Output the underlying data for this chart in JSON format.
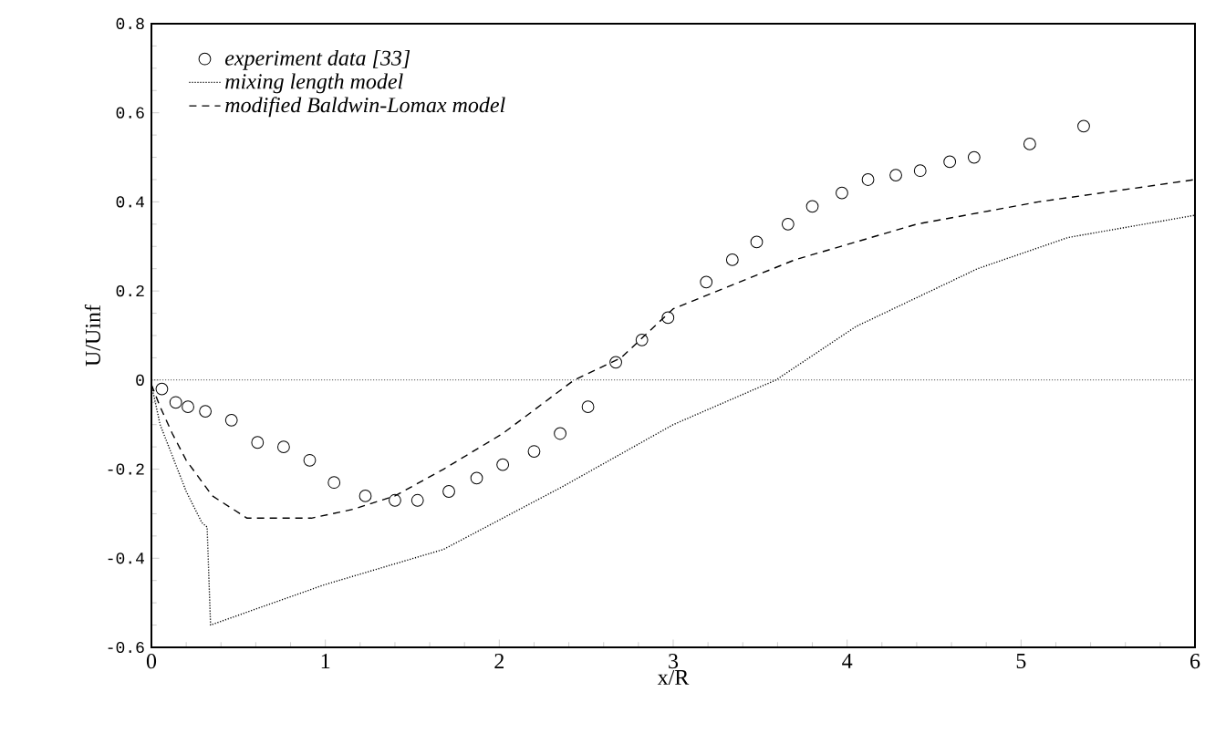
{
  "chart_data": {
    "type": "line",
    "xlabel": "x/R",
    "ylabel": "U/Uinf",
    "xlim": [
      0,
      6
    ],
    "ylim": [
      -0.6,
      0.8
    ],
    "xticks": [
      0,
      1,
      2,
      3,
      4,
      5,
      6
    ],
    "yticks": [
      -0.6,
      -0.4,
      -0.2,
      0,
      0.2,
      0.4,
      0.6,
      0.8
    ],
    "legend": "top left",
    "grid": false,
    "ref_lines": [
      {
        "axis": "y",
        "value": 0,
        "color": "#000000",
        "line_style": "dotted"
      }
    ],
    "series": [
      {
        "name": "experiment data [33]",
        "type": "scatter",
        "marker": "circle",
        "color": "#000000",
        "x": [
          0.06,
          0.14,
          0.21,
          0.31,
          0.46,
          0.61,
          0.76,
          0.91,
          1.05,
          1.23,
          1.4,
          1.53,
          1.71,
          1.87,
          2.02,
          2.2,
          2.35,
          2.51,
          2.67,
          2.82,
          2.97,
          3.19,
          3.34,
          3.48,
          3.66,
          3.8,
          3.97,
          4.12,
          4.28,
          4.42,
          4.59,
          4.73,
          5.05,
          5.36
        ],
        "values": [
          -0.02,
          -0.05,
          -0.06,
          -0.07,
          -0.09,
          -0.14,
          -0.15,
          -0.18,
          -0.23,
          -0.26,
          -0.27,
          -0.27,
          -0.25,
          -0.22,
          -0.19,
          -0.16,
          -0.12,
          -0.06,
          0.04,
          0.09,
          0.14,
          0.22,
          0.27,
          0.31,
          0.35,
          0.39,
          0.42,
          0.45,
          0.46,
          0.47,
          0.49,
          0.5,
          0.53,
          0.57
        ]
      },
      {
        "name": "mixing length model",
        "type": "line",
        "line_style": "dotted",
        "color": "#000000",
        "x": [
          0,
          0.05,
          0.1,
          0.2,
          0.29,
          0.32,
          0.34,
          0.99,
          1.68,
          2.36,
          3.0,
          3.59,
          4.05,
          4.75,
          5.27,
          6
        ],
        "values": [
          -0.01,
          -0.1,
          -0.15,
          -0.25,
          -0.32,
          -0.33,
          -0.55,
          -0.46,
          -0.38,
          -0.24,
          -0.1,
          0,
          0.12,
          0.25,
          0.32,
          0.37
        ]
      },
      {
        "name": "modified Baldwin-Lomax model",
        "type": "line",
        "line_style": "dashed",
        "color": "#000000",
        "x": [
          0,
          0.05,
          0.12,
          0.2,
          0.35,
          0.55,
          0.92,
          1.16,
          1.4,
          1.68,
          2.02,
          2.43,
          2.7,
          3.0,
          3.7,
          4.4,
          5.1,
          6
        ],
        "values": [
          -0.01,
          -0.06,
          -0.12,
          -0.18,
          -0.26,
          -0.31,
          -0.31,
          -0.29,
          -0.26,
          -0.2,
          -0.12,
          0,
          0.05,
          0.16,
          0.27,
          0.35,
          0.4,
          0.45
        ]
      }
    ]
  }
}
